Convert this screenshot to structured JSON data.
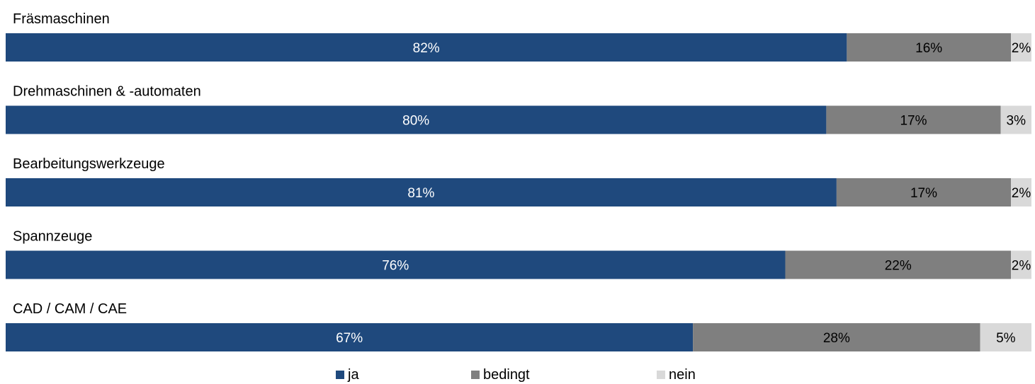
{
  "chart_data": {
    "type": "bar",
    "orientation": "horizontal",
    "stacked": true,
    "categories": [
      "Fräsmaschinen",
      "Drehmaschinen & -automaten",
      "Bearbeitungswerkzeuge",
      "Spannzeuge",
      "CAD / CAM / CAE"
    ],
    "series": [
      {
        "name": "ja",
        "color": "#1f497d",
        "label_color": "#ffffff",
        "values": [
          82,
          80,
          81,
          76,
          67
        ]
      },
      {
        "name": "bedingt",
        "color": "#7f7f7f",
        "label_color": "#000000",
        "values": [
          16,
          17,
          17,
          22,
          28
        ]
      },
      {
        "name": "nein",
        "color": "#d9d9d9",
        "label_color": "#000000",
        "values": [
          2,
          3,
          2,
          2,
          5
        ]
      }
    ],
    "value_suffix": "%",
    "xlim": [
      0,
      100
    ],
    "grid": false,
    "legend_position": "bottom"
  }
}
